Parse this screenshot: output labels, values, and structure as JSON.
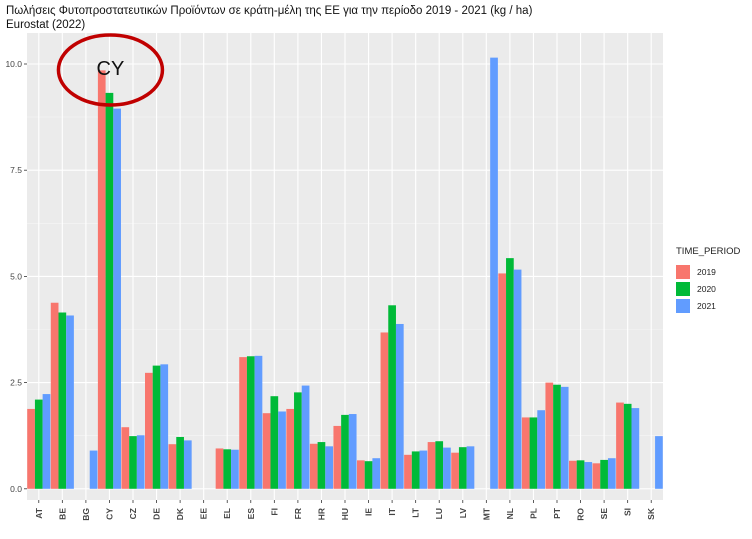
{
  "chart_data": {
    "type": "bar",
    "title": "Πωλήσεις Φυτοπροστατευτικών Προϊόντων σε κράτη-μέλη της ΕΕ για την περίοδο 2019 - 2021 (kg / ha)",
    "subtitle": "Eurostat (2022)",
    "categories": [
      "AT",
      "BE",
      "BG",
      "CY",
      "CZ",
      "DE",
      "DK",
      "EE",
      "EL",
      "ES",
      "FI",
      "FR",
      "HR",
      "HU",
      "IE",
      "IT",
      "LT",
      "LU",
      "LV",
      "MT",
      "NL",
      "PL",
      "PT",
      "RO",
      "SE",
      "SI",
      "SK"
    ],
    "series": [
      {
        "name": "2019",
        "color": "#F8766D",
        "values": [
          1.88,
          4.38,
          null,
          9.85,
          1.45,
          2.73,
          1.05,
          null,
          0.95,
          3.1,
          1.78,
          1.88,
          1.06,
          1.48,
          0.67,
          3.68,
          0.8,
          1.1,
          0.85,
          null,
          5.07,
          1.68,
          2.5,
          0.66,
          0.6,
          2.03,
          null
        ]
      },
      {
        "name": "2020",
        "color": "#00BA38",
        "values": [
          2.1,
          4.15,
          null,
          9.32,
          1.24,
          2.9,
          1.22,
          null,
          0.93,
          3.12,
          2.18,
          2.27,
          1.1,
          1.74,
          0.65,
          4.32,
          0.88,
          1.12,
          0.98,
          null,
          5.43,
          1.68,
          2.45,
          0.67,
          0.68,
          2.0,
          null
        ]
      },
      {
        "name": "2021",
        "color": "#619CFF",
        "values": [
          2.23,
          4.08,
          0.9,
          8.95,
          1.26,
          2.93,
          1.14,
          null,
          0.92,
          3.13,
          1.82,
          2.43,
          1.0,
          1.76,
          0.72,
          3.88,
          0.9,
          0.97,
          1.0,
          10.15,
          5.16,
          1.85,
          2.4,
          0.63,
          0.72,
          1.9,
          1.24
        ]
      }
    ],
    "yticks": [
      0.0,
      2.5,
      5.0,
      7.5,
      10.0
    ],
    "ytick_labels": [
      "0.0",
      "2.5",
      "5.0",
      "7.5",
      "10.0"
    ],
    "ylim": [
      0,
      10.6
    ],
    "legend": {
      "title": "TIME_PERIOD",
      "position": "right"
    },
    "grid": true,
    "annotation": {
      "text": "CY",
      "target": "CY",
      "shape": "ellipse",
      "color": "#C00000"
    }
  }
}
